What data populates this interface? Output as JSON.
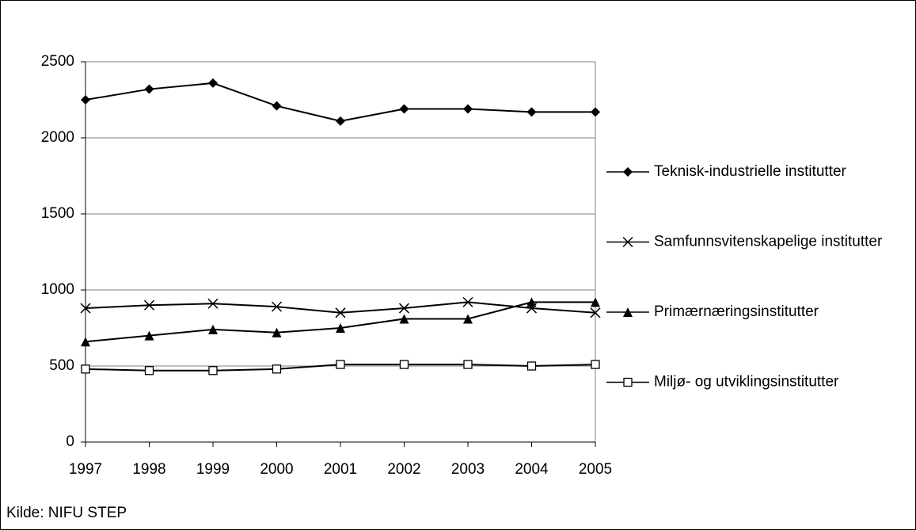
{
  "chart_data": {
    "type": "line",
    "source": "Kilde: NIFU STEP",
    "x": [
      1997,
      1998,
      1999,
      2000,
      2001,
      2002,
      2003,
      2004,
      2005
    ],
    "xlim": [
      1997,
      2005
    ],
    "xticks": [
      1997,
      1998,
      1999,
      2000,
      2001,
      2002,
      2003,
      2004,
      2005
    ],
    "ylim": [
      0,
      2500
    ],
    "yticks": [
      0,
      500,
      1000,
      1500,
      2000,
      2500
    ],
    "grid": true,
    "legend": "right",
    "series": [
      {
        "name": "Teknisk-industrielle institutter",
        "color": "#000000",
        "marker": "diamond",
        "values": [
          2250,
          2320,
          2360,
          2210,
          2110,
          2190,
          2190,
          2170,
          2170
        ]
      },
      {
        "name": "Samfunnsvitenskapelige institutter",
        "color": "#000000",
        "marker": "x",
        "values": [
          880,
          900,
          910,
          890,
          850,
          880,
          920,
          880,
          850
        ]
      },
      {
        "name": "Primærnæringsinstitutter",
        "color": "#000000",
        "marker": "triangle",
        "values": [
          660,
          700,
          740,
          720,
          750,
          810,
          810,
          920,
          920
        ]
      },
      {
        "name": "Miljø- og utviklingsinstitutter",
        "color": "#000000",
        "marker": "square",
        "values": [
          480,
          470,
          470,
          480,
          510,
          510,
          510,
          500,
          510
        ]
      }
    ]
  }
}
